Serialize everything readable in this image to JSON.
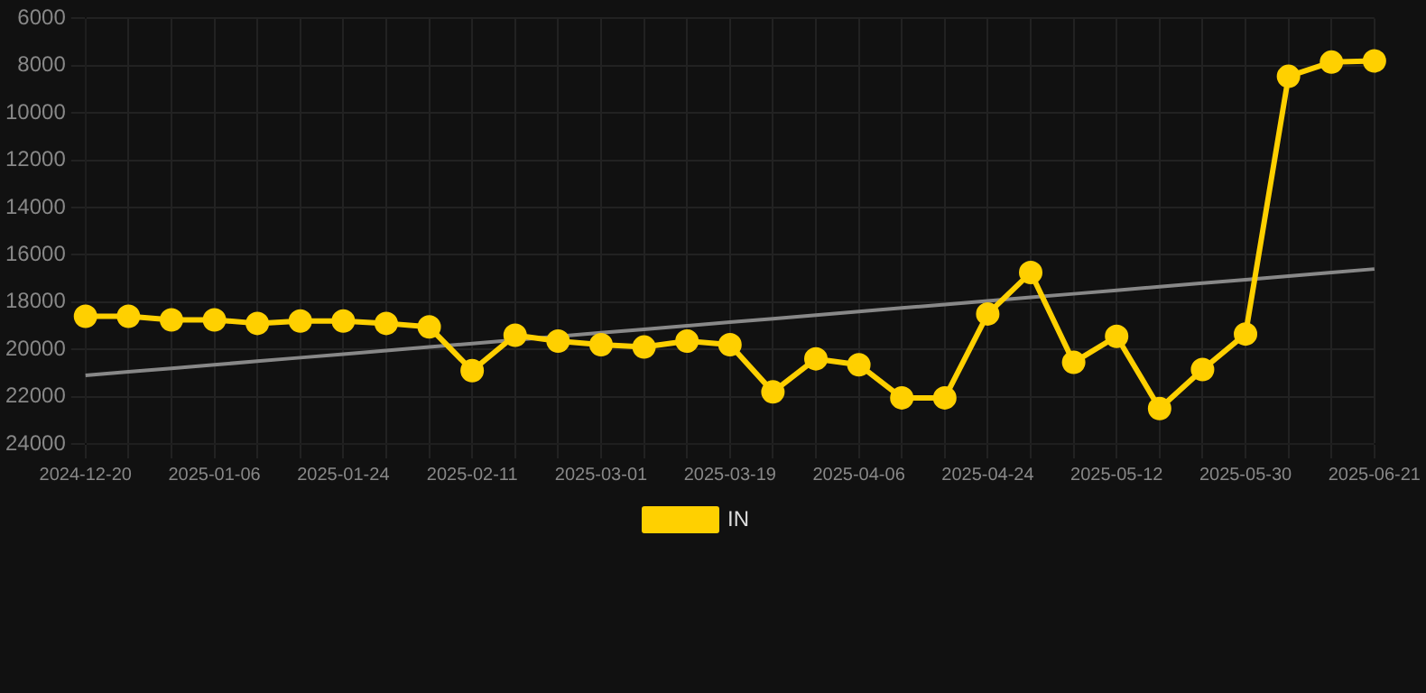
{
  "chart_data": {
    "type": "line",
    "categories": [
      "2024-12-20",
      null,
      null,
      "2025-01-06",
      null,
      null,
      "2025-01-24",
      null,
      null,
      "2025-02-11",
      null,
      null,
      "2025-03-01",
      null,
      null,
      "2025-03-19",
      null,
      null,
      "2025-04-06",
      null,
      null,
      "2025-04-24",
      null,
      null,
      "2025-05-12",
      null,
      null,
      "2025-05-30",
      null,
      null,
      "2025-06-21"
    ],
    "series": [
      {
        "name": "IN",
        "color": "#ffd000",
        "marker": "circle",
        "values": [
          18600,
          18600,
          18750,
          18750,
          18900,
          18800,
          18800,
          18900,
          19050,
          20900,
          19400,
          19650,
          19800,
          19900,
          19650,
          19800,
          21800,
          20400,
          20650,
          22050,
          22050,
          18500,
          16750,
          20550,
          19450,
          22500,
          20850,
          19350,
          8450,
          7850,
          7800
        ]
      },
      {
        "type": "line",
        "color": "#888888",
        "marker": "none",
        "values": [
          21100,
          20950,
          20800,
          20650,
          20500,
          20350,
          20200,
          20050,
          19900,
          19750,
          19600,
          19450,
          19300,
          19150,
          19000,
          18850,
          18700,
          18550,
          18400,
          18250,
          18100,
          17950,
          17800,
          17650,
          17500,
          17350,
          17200,
          17050,
          16900,
          16750,
          16600
        ]
      }
    ],
    "ylim": [
      24000,
      6000
    ],
    "yticks": [
      6000,
      8000,
      10000,
      12000,
      14000,
      16000,
      18000,
      20000,
      22000,
      24000
    ],
    "grid": true,
    "legend": "bottom"
  }
}
